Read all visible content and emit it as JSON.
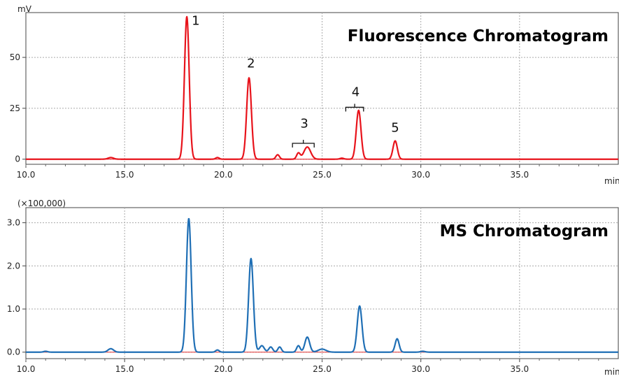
{
  "chart_data": [
    {
      "type": "line",
      "title": "Fluorescence Chromatogram",
      "xlabel": "min",
      "ylabel": "mV",
      "xlim": [
        10.0,
        40.0
      ],
      "ylim": [
        -2.5,
        72
      ],
      "x_ticks": [
        10.0,
        15.0,
        20.0,
        25.0,
        30.0,
        35.0
      ],
      "x_tick_labels": [
        "10.0",
        "15.0",
        "20.0",
        "25.0",
        "30.0",
        "35.0"
      ],
      "y_ticks": [
        0,
        25,
        50
      ],
      "y_tick_labels": [
        "0",
        "25",
        "50"
      ],
      "grid": true,
      "colors": {
        "signal": "#e8131b",
        "baseline": "#e8131b"
      },
      "peaks": [
        {
          "rt": 14.3,
          "height": 0.8,
          "width": 0.14
        },
        {
          "rt": 18.15,
          "height": 70,
          "width": 0.12
        },
        {
          "rt": 19.7,
          "height": 0.8,
          "width": 0.09
        },
        {
          "rt": 21.3,
          "height": 40,
          "width": 0.12
        },
        {
          "rt": 22.75,
          "height": 2.2,
          "width": 0.09
        },
        {
          "rt": 23.8,
          "height": 3.0,
          "width": 0.09
        },
        {
          "rt": 24.25,
          "height": 6.0,
          "width": 0.17
        },
        {
          "rt": 26.0,
          "height": 0.5,
          "width": 0.1
        },
        {
          "rt": 26.85,
          "height": 24,
          "width": 0.12
        },
        {
          "rt": 28.7,
          "height": 9,
          "width": 0.11
        }
      ],
      "peak_labels": [
        {
          "text": "1",
          "x": 18.6,
          "y": 66
        },
        {
          "text": "2",
          "x": 21.4,
          "y": 45
        },
        {
          "text": "3",
          "x": 24.1,
          "y": 15.5
        },
        {
          "text": "4",
          "x": 26.7,
          "y": 31
        },
        {
          "text": "5",
          "x": 28.7,
          "y": 13.5
        }
      ],
      "brackets": [
        {
          "x1": 23.5,
          "x2": 24.6,
          "y": 7.8
        },
        {
          "x1": 26.2,
          "x2": 27.1,
          "y": 25.5
        }
      ]
    },
    {
      "type": "line",
      "title": "MS Chromatogram",
      "xlabel": "min",
      "ylabel": "(×100,000)",
      "xlim": [
        10.0,
        40.0
      ],
      "ylim": [
        -0.15,
        3.35
      ],
      "x_ticks": [
        10.0,
        15.0,
        20.0,
        25.0,
        30.0,
        35.0
      ],
      "x_tick_labels": [
        "10.0",
        "15.0",
        "20.0",
        "25.0",
        "30.0",
        "35.0"
      ],
      "y_ticks": [
        0.0,
        1.0,
        2.0,
        3.0
      ],
      "y_tick_labels": [
        "0.0",
        "1.0",
        "2.0",
        "3.0"
      ],
      "grid": true,
      "colors": {
        "signal": "#1f6fb5",
        "baseline": "#e03030"
      },
      "peaks": [
        {
          "rt": 11.0,
          "height": 0.02,
          "width": 0.1
        },
        {
          "rt": 14.3,
          "height": 0.08,
          "width": 0.14
        },
        {
          "rt": 18.25,
          "height": 3.1,
          "width": 0.12
        },
        {
          "rt": 19.7,
          "height": 0.05,
          "width": 0.09
        },
        {
          "rt": 21.4,
          "height": 2.17,
          "width": 0.12
        },
        {
          "rt": 21.95,
          "height": 0.15,
          "width": 0.12
        },
        {
          "rt": 22.4,
          "height": 0.12,
          "width": 0.1
        },
        {
          "rt": 22.85,
          "height": 0.12,
          "width": 0.09
        },
        {
          "rt": 23.8,
          "height": 0.15,
          "width": 0.09
        },
        {
          "rt": 24.25,
          "height": 0.35,
          "width": 0.12
        },
        {
          "rt": 25.0,
          "height": 0.07,
          "width": 0.2
        },
        {
          "rt": 26.9,
          "height": 1.07,
          "width": 0.12
        },
        {
          "rt": 28.8,
          "height": 0.31,
          "width": 0.1
        },
        {
          "rt": 30.1,
          "height": 0.02,
          "width": 0.12
        }
      ],
      "peak_labels": [],
      "brackets": []
    }
  ]
}
